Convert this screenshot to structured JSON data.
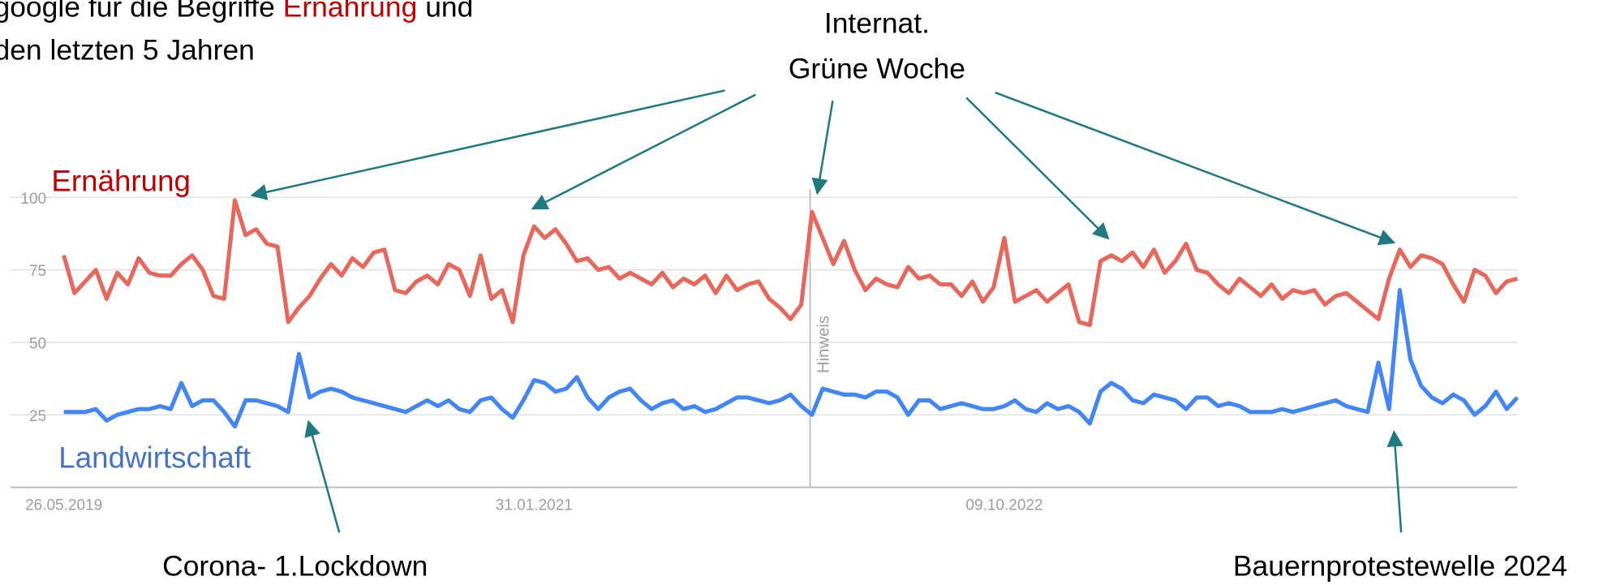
{
  "chart_data": {
    "type": "line",
    "title_parts": [
      "google für die Begriffe ",
      "Ernährung",
      " und"
    ],
    "subtitle": "den letzten 5 Jahren",
    "categories": [
      "26.05.2019",
      null,
      null,
      null,
      null,
      null,
      null,
      null,
      null,
      null,
      null,
      null,
      null,
      null,
      null,
      null,
      null,
      null,
      null,
      null,
      null,
      null,
      null,
      null,
      null,
      null,
      null,
      null,
      null,
      null,
      null,
      null,
      null,
      null,
      null,
      null,
      null,
      null,
      null,
      null,
      null,
      null,
      null,
      null,
      "31.01.2021",
      null,
      null,
      null,
      null,
      null,
      null,
      null,
      null,
      null,
      null,
      null,
      null,
      null,
      null,
      null,
      null,
      null,
      null,
      null,
      null,
      null,
      null,
      null,
      null,
      null,
      null,
      null,
      null,
      null,
      null,
      null,
      null,
      null,
      null,
      null,
      null,
      null,
      null,
      null,
      null,
      null,
      null,
      null,
      "09.10.2022",
      null,
      null,
      null,
      null,
      null,
      null,
      null,
      null,
      null,
      null,
      null,
      null,
      null,
      null,
      null,
      null,
      null,
      null,
      null,
      null,
      null,
      null,
      null,
      null,
      null,
      null,
      null,
      null,
      null,
      null,
      null,
      null,
      null,
      null,
      null,
      null,
      null,
      null,
      null,
      null,
      null,
      null,
      null,
      null,
      null,
      null,
      null,
      null
    ],
    "series": [
      {
        "name": "Ernährung",
        "color": "#e8675c",
        "label_color": "#c00000",
        "values": [
          80,
          67,
          71,
          75,
          65,
          74,
          70,
          79,
          74,
          73,
          73,
          77,
          80,
          75,
          66,
          65,
          99,
          87,
          89,
          84,
          83,
          57,
          62,
          66,
          72,
          77,
          73,
          79,
          76,
          81,
          82,
          68,
          67,
          71,
          73,
          70,
          77,
          75,
          66,
          80,
          65,
          68,
          57,
          80,
          90,
          86,
          89,
          84,
          78,
          79,
          75,
          76,
          72,
          74,
          72,
          70,
          74,
          69,
          72,
          70,
          73,
          67,
          73,
          68,
          70,
          71,
          65,
          62,
          58,
          63,
          95,
          86,
          77,
          85,
          75,
          68,
          72,
          70,
          69,
          76,
          72,
          73,
          70,
          70,
          66,
          71,
          64,
          69,
          86,
          64,
          66,
          68,
          64,
          67,
          70,
          57,
          56,
          78,
          80,
          78,
          81,
          76,
          82,
          74,
          78,
          84,
          75,
          74,
          70,
          67,
          72,
          69,
          66,
          70,
          65,
          68,
          67,
          68,
          63,
          66,
          67,
          64,
          61,
          58,
          72,
          82,
          76,
          80,
          79,
          77,
          70,
          64,
          75,
          73,
          67,
          71,
          72
        ]
      },
      {
        "name": "Landwirtschaft",
        "color": "#4285f4",
        "label_color": "#4472c4",
        "values": [
          26,
          26,
          26,
          27,
          23,
          25,
          26,
          27,
          27,
          28,
          27,
          36,
          28,
          30,
          30,
          26,
          21,
          30,
          30,
          29,
          28,
          26,
          46,
          31,
          33,
          34,
          33,
          31,
          30,
          29,
          28,
          27,
          26,
          28,
          30,
          28,
          30,
          27,
          26,
          30,
          31,
          27,
          24,
          30,
          37,
          36,
          33,
          34,
          38,
          31,
          27,
          31,
          33,
          34,
          30,
          27,
          29,
          30,
          27,
          28,
          26,
          27,
          29,
          31,
          31,
          30,
          29,
          30,
          32,
          28,
          25,
          34,
          33,
          32,
          32,
          31,
          33,
          33,
          31,
          25,
          30,
          30,
          27,
          28,
          29,
          28,
          27,
          27,
          28,
          30,
          27,
          26,
          29,
          27,
          28,
          26,
          22,
          33,
          36,
          34,
          30,
          29,
          32,
          31,
          30,
          27,
          31,
          31,
          28,
          29,
          28,
          26,
          26,
          26,
          27,
          26,
          27,
          28,
          29,
          30,
          28,
          27,
          26,
          43,
          27,
          68,
          44,
          35,
          31,
          29,
          32,
          30,
          25,
          28,
          33,
          27,
          31
        ]
      }
    ],
    "ylim": [
      0,
      100
    ],
    "yticks": [
      25,
      50,
      75,
      100
    ],
    "grid": true,
    "note": "Hinweis",
    "annotations": {
      "messe": [
        "Internat.",
        "Grüne Woche"
      ],
      "corona": "Corona- 1.Lockdown",
      "protest": "Bauernprotestewelle 2024"
    }
  }
}
